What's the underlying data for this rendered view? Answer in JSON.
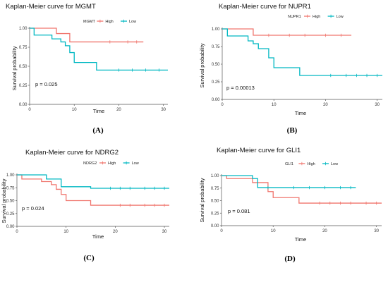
{
  "colors": {
    "High": "#F0766E",
    "Low": "#00B8C2"
  },
  "chart_data": [
    {
      "type": "line",
      "title": "Kaplan-Meier curve for MGMT",
      "legend_title": "MGMT",
      "xlabel": "Time",
      "ylabel": "Survival probability",
      "xticks": [
        "0",
        "10",
        "20",
        "30"
      ],
      "yticks": [
        "0.00",
        "0.25",
        "0.50",
        "0.75",
        "1.00"
      ],
      "xlim": [
        0,
        31
      ],
      "ylim": [
        0,
        1
      ],
      "p_value": "p = 0.025",
      "caption": "(A)",
      "legend_position": "top",
      "series": [
        {
          "name": "High",
          "x": [
            0,
            6,
            9,
            25.5
          ],
          "y": [
            1.0,
            0.93,
            0.82,
            0.82
          ],
          "censor_x": [
            18,
            22,
            24
          ]
        },
        {
          "name": "Low",
          "x": [
            0,
            1,
            5,
            7,
            8,
            9,
            10,
            15,
            31
          ],
          "y": [
            1.0,
            0.91,
            0.86,
            0.82,
            0.77,
            0.68,
            0.55,
            0.45,
            0.45
          ],
          "censor_x": [
            20,
            23,
            26,
            29
          ]
        }
      ]
    },
    {
      "type": "line",
      "title": "Kaplan-Meier curve for NUPR1",
      "legend_title": "NUPR1",
      "xlabel": "Time",
      "ylabel": "Survival probability",
      "xticks": [
        "0",
        "10",
        "20",
        "30"
      ],
      "yticks": [
        "0.00",
        "0.25",
        "0.50",
        "0.75",
        "1.00"
      ],
      "xlim": [
        0,
        31
      ],
      "ylim": [
        0,
        1
      ],
      "p_value": "p = 0.00013",
      "caption": "(B)",
      "legend_position": "top",
      "series": [
        {
          "name": "High",
          "x": [
            0,
            6,
            25
          ],
          "y": [
            1.0,
            0.91,
            0.91
          ],
          "censor_x": [
            9,
            13,
            16,
            20,
            23
          ]
        },
        {
          "name": "Low",
          "x": [
            0,
            1,
            5,
            6,
            7,
            9,
            10,
            15,
            31
          ],
          "y": [
            1.0,
            0.9,
            0.83,
            0.79,
            0.72,
            0.59,
            0.45,
            0.34,
            0.34
          ],
          "censor_x": [
            21,
            24,
            26,
            28,
            30
          ]
        }
      ]
    },
    {
      "type": "line",
      "title": "Kaplan-Meier curve for NDRG2",
      "legend_title": "NDRG2",
      "xlabel": "Time",
      "ylabel": "Survival probability",
      "xticks": [
        "0",
        "10",
        "20",
        "30"
      ],
      "yticks": [
        "0.00",
        "0.25",
        "0.50",
        "0.75",
        "1.00"
      ],
      "xlim": [
        0,
        31
      ],
      "ylim": [
        0,
        1
      ],
      "p_value": "p = 0.024",
      "caption": "(C)",
      "legend_position": "top",
      "series": [
        {
          "name": "High",
          "x": [
            0,
            1,
            5,
            7,
            8,
            9,
            10,
            15,
            31
          ],
          "y": [
            1.0,
            0.92,
            0.87,
            0.81,
            0.72,
            0.62,
            0.5,
            0.41,
            0.41
          ],
          "censor_x": [
            21,
            23,
            26,
            28,
            30
          ]
        },
        {
          "name": "Low",
          "x": [
            0,
            6,
            9,
            15,
            31
          ],
          "y": [
            1.0,
            0.92,
            0.77,
            0.74,
            0.74
          ],
          "censor_x": [
            19,
            21,
            23,
            26,
            28,
            30
          ]
        }
      ]
    },
    {
      "type": "line",
      "title": "Kaplan-Meier curve for GLI1",
      "legend_title": "GLI1",
      "xlabel": "Time",
      "ylabel": "Survival probability",
      "xticks": [
        "0",
        "10",
        "20",
        "30"
      ],
      "yticks": [
        "0.00",
        "0.25",
        "0.50",
        "0.75",
        "1.00"
      ],
      "xlim": [
        0,
        31
      ],
      "ylim": [
        0,
        1
      ],
      "p_value": "p = 0.081",
      "caption": "(D)",
      "legend_position": "top",
      "series": [
        {
          "name": "High",
          "x": [
            0,
            1,
            6,
            9,
            10,
            15,
            31
          ],
          "y": [
            1.0,
            0.94,
            0.86,
            0.68,
            0.56,
            0.45,
            0.45
          ],
          "censor_x": [
            19,
            21,
            23,
            25,
            28,
            30
          ]
        },
        {
          "name": "Low",
          "x": [
            0,
            6,
            7,
            26
          ],
          "y": [
            1.0,
            0.94,
            0.76,
            0.76
          ],
          "censor_x": [
            9,
            14,
            17,
            20,
            23,
            25
          ]
        }
      ]
    }
  ]
}
